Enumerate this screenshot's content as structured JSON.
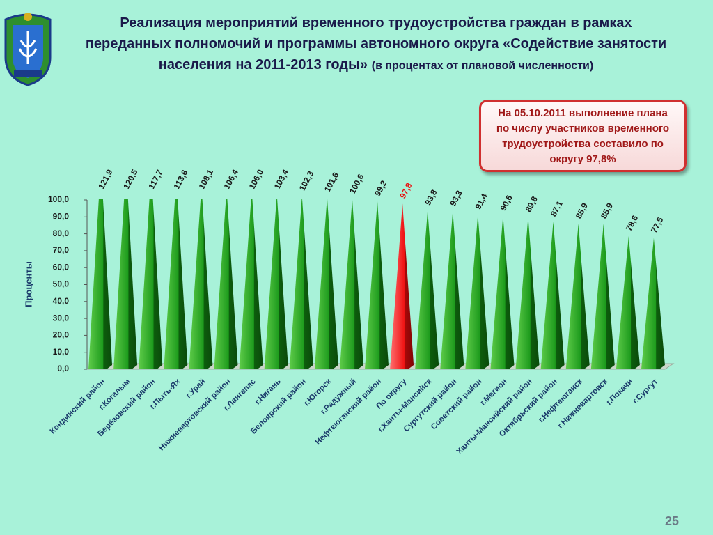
{
  "title": "Реализация мероприятий временного трудоустройства граждан в рамках переданных полномочий и программы автономного округа «Содействие занятости населения на 2011-2013 годы»",
  "subtitle": "(в процентах от плановой численности)",
  "callout": "На 05.10.2011 выполнение плана по числу участников временного трудоустройства составило по округу 97,8%",
  "page_number": "25",
  "chart_data": {
    "type": "bar",
    "y_label": "Проценты",
    "categories": [
      "Кондинский район",
      "г.Когалым",
      "Берёзовский район",
      "г.Пыть-Ях",
      "г.Урай",
      "Нижневартовский район",
      "г.Лангепас",
      "г.Нягань",
      "Белоярский район",
      "г.Югорск",
      "г.Радужный",
      "Нефтеюганский район",
      "По округу",
      "г.Ханты-Мансийск",
      "Сургутский район",
      "Советский район",
      "г.Мегион",
      "Ханты-Мансийский район",
      "Октябрьский район",
      "г.Нефтеюганск",
      "г.Нижневартовск",
      "г.Покачи",
      "г.Сургут"
    ],
    "values": [
      121.9,
      120.5,
      117.7,
      113.6,
      108.1,
      106.4,
      106.0,
      103.4,
      102.3,
      101.6,
      100.6,
      99.2,
      97.8,
      93.8,
      93.3,
      91.4,
      90.6,
      89.8,
      87.1,
      85.9,
      85.9,
      78.6,
      77.5
    ],
    "value_labels": [
      "121,9",
      "120,5",
      "117,7",
      "113,6",
      "108,1",
      "106,4",
      "106,0",
      "103,4",
      "102,3",
      "101,6",
      "100,6",
      "99,2",
      "97,8",
      "93,8",
      "93,3",
      "91,4",
      "90,6",
      "89,8",
      "87,1",
      "85,9",
      "85,9",
      "78,6",
      "77,5"
    ],
    "color": "#1f8f1f",
    "colors": [
      "#1f8f1f",
      "#1f8f1f",
      "#1f8f1f",
      "#1f8f1f",
      "#1f8f1f",
      "#1f8f1f",
      "#1f8f1f",
      "#1f8f1f",
      "#1f8f1f",
      "#1f8f1f",
      "#1f8f1f",
      "#1f8f1f",
      "#e81010",
      "#1f8f1f",
      "#1f8f1f",
      "#1f8f1f",
      "#1f8f1f",
      "#1f8f1f",
      "#1f8f1f",
      "#1f8f1f",
      "#1f8f1f",
      "#1f8f1f",
      "#1f8f1f"
    ],
    "ylim": [
      0,
      100
    ],
    "yticks": [
      {
        "value": 0,
        "label": "0,0"
      },
      {
        "value": 10,
        "label": "10,0"
      },
      {
        "value": 20,
        "label": "20,0"
      },
      {
        "value": 30,
        "label": "30,0"
      },
      {
        "value": 40,
        "label": "40,0"
      },
      {
        "value": 50,
        "label": "50,0"
      },
      {
        "value": 60,
        "label": "60,0"
      },
      {
        "value": 70,
        "label": "70,0"
      },
      {
        "value": 80,
        "label": "80,0"
      },
      {
        "value": 90,
        "label": "90,0"
      },
      {
        "value": 100,
        "label": "100,0"
      }
    ],
    "grid": false
  }
}
